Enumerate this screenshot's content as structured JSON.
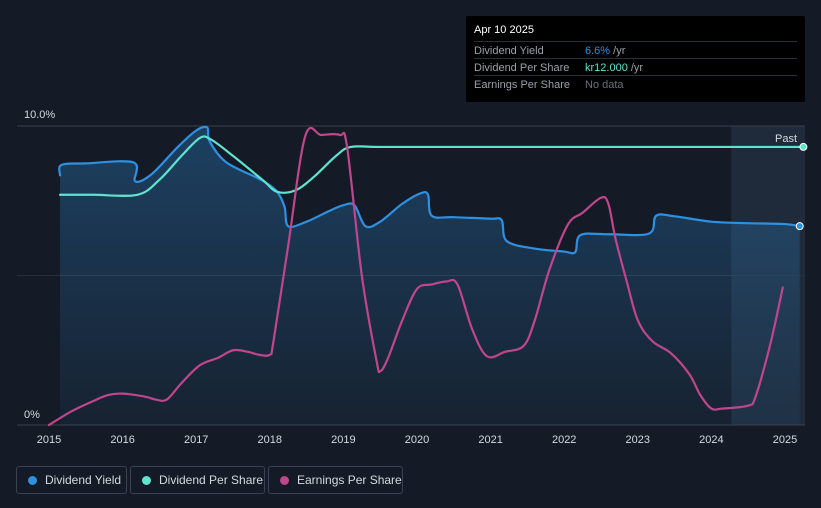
{
  "tooltip": {
    "date": "Apr 10 2025",
    "rows": [
      {
        "label": "Dividend Yield",
        "value": "6.6%",
        "unit": " /yr",
        "color": "#2e90e0"
      },
      {
        "label": "Dividend Per Share",
        "value": "kr12.000",
        "unit": " /yr",
        "color": "#5fe3cf"
      },
      {
        "label": "Earnings Per Share",
        "value": "No data",
        "unit": "",
        "color": "#6b717b"
      }
    ]
  },
  "legend": [
    {
      "label": "Dividend Yield",
      "color": "#2e90e0"
    },
    {
      "label": "Dividend Per Share",
      "color": "#5fe3cf"
    },
    {
      "label": "Earnings Per Share",
      "color": "#c0468b"
    }
  ],
  "chart_data": {
    "type": "line",
    "y_tick_labels": [
      "10.0%",
      "0%"
    ],
    "ylim": [
      0,
      10
    ],
    "xlim": [
      2015,
      2025.25
    ],
    "x_tick_labels": [
      "2015",
      "2016",
      "2017",
      "2018",
      "2019",
      "2020",
      "2021",
      "2022",
      "2023",
      "2024",
      "2025"
    ],
    "past_label": "Past",
    "forecast_start": 2024.27,
    "grid": true,
    "series": [
      {
        "name": "Dividend Yield",
        "color": "#2e90e0",
        "area": true,
        "points": [
          [
            2015.15,
            8.35
          ],
          [
            2015.17,
            8.7
          ],
          [
            2015.5,
            8.75
          ],
          [
            2016.15,
            8.78
          ],
          [
            2016.17,
            8.15
          ],
          [
            2016.4,
            8.4
          ],
          [
            2016.75,
            9.3
          ],
          [
            2017.0,
            9.85
          ],
          [
            2017.15,
            9.95
          ],
          [
            2017.18,
            9.5
          ],
          [
            2017.4,
            8.8
          ],
          [
            2017.8,
            8.3
          ],
          [
            2017.95,
            8.1
          ],
          [
            2018.1,
            7.8
          ],
          [
            2018.2,
            7.3
          ],
          [
            2018.25,
            6.65
          ],
          [
            2018.5,
            6.8
          ],
          [
            2018.8,
            7.15
          ],
          [
            2019.0,
            7.35
          ],
          [
            2019.15,
            7.35
          ],
          [
            2019.3,
            6.65
          ],
          [
            2019.5,
            6.8
          ],
          [
            2019.8,
            7.4
          ],
          [
            2020.05,
            7.75
          ],
          [
            2020.15,
            7.7
          ],
          [
            2020.2,
            7.0
          ],
          [
            2020.5,
            6.95
          ],
          [
            2021.0,
            6.9
          ],
          [
            2021.15,
            6.85
          ],
          [
            2021.22,
            6.15
          ],
          [
            2021.6,
            5.9
          ],
          [
            2022.0,
            5.8
          ],
          [
            2022.15,
            5.78
          ],
          [
            2022.22,
            6.35
          ],
          [
            2022.6,
            6.38
          ],
          [
            2023.15,
            6.4
          ],
          [
            2023.25,
            7.0
          ],
          [
            2023.5,
            6.98
          ],
          [
            2024.0,
            6.8
          ],
          [
            2024.5,
            6.75
          ],
          [
            2025.0,
            6.72
          ],
          [
            2025.2,
            6.65
          ]
        ]
      },
      {
        "name": "Dividend Per Share",
        "color": "#5fe3cf",
        "area": false,
        "points": [
          [
            2015.15,
            7.7
          ],
          [
            2015.6,
            7.7
          ],
          [
            2016.2,
            7.7
          ],
          [
            2016.5,
            8.2
          ],
          [
            2016.8,
            9.0
          ],
          [
            2017.05,
            9.6
          ],
          [
            2017.2,
            9.55
          ],
          [
            2017.5,
            9.0
          ],
          [
            2017.9,
            8.2
          ],
          [
            2018.1,
            7.8
          ],
          [
            2018.35,
            7.85
          ],
          [
            2018.6,
            8.3
          ],
          [
            2018.9,
            9.0
          ],
          [
            2019.1,
            9.3
          ],
          [
            2019.5,
            9.3
          ],
          [
            2020.5,
            9.3
          ],
          [
            2021.5,
            9.3
          ],
          [
            2022.5,
            9.3
          ],
          [
            2023.5,
            9.3
          ],
          [
            2024.5,
            9.3
          ],
          [
            2025.25,
            9.3
          ]
        ]
      },
      {
        "name": "Earnings Per Share",
        "color": "#c0468b",
        "area": false,
        "points": [
          [
            2015.0,
            0.0
          ],
          [
            2015.3,
            0.45
          ],
          [
            2015.6,
            0.8
          ],
          [
            2015.8,
            1.0
          ],
          [
            2016.0,
            1.05
          ],
          [
            2016.3,
            0.95
          ],
          [
            2016.45,
            0.85
          ],
          [
            2016.6,
            0.85
          ],
          [
            2016.8,
            1.4
          ],
          [
            2017.05,
            2.0
          ],
          [
            2017.3,
            2.25
          ],
          [
            2017.5,
            2.5
          ],
          [
            2017.7,
            2.45
          ],
          [
            2017.85,
            2.35
          ],
          [
            2018.0,
            2.35
          ],
          [
            2018.05,
            2.8
          ],
          [
            2018.25,
            6.0
          ],
          [
            2018.48,
            9.65
          ],
          [
            2018.7,
            9.7
          ],
          [
            2018.95,
            9.7
          ],
          [
            2019.05,
            9.3
          ],
          [
            2019.25,
            5.0
          ],
          [
            2019.45,
            2.15
          ],
          [
            2019.5,
            1.8
          ],
          [
            2019.6,
            2.2
          ],
          [
            2019.8,
            3.5
          ],
          [
            2020.0,
            4.55
          ],
          [
            2020.2,
            4.7
          ],
          [
            2020.4,
            4.8
          ],
          [
            2020.55,
            4.7
          ],
          [
            2020.75,
            3.2
          ],
          [
            2020.95,
            2.3
          ],
          [
            2021.2,
            2.45
          ],
          [
            2021.45,
            2.65
          ],
          [
            2021.6,
            3.5
          ],
          [
            2021.8,
            5.2
          ],
          [
            2022.05,
            6.7
          ],
          [
            2022.25,
            7.1
          ],
          [
            2022.5,
            7.6
          ],
          [
            2022.6,
            7.4
          ],
          [
            2022.7,
            6.2
          ],
          [
            2022.85,
            4.8
          ],
          [
            2023.0,
            3.5
          ],
          [
            2023.2,
            2.8
          ],
          [
            2023.45,
            2.4
          ],
          [
            2023.7,
            1.7
          ],
          [
            2023.85,
            1.0
          ],
          [
            2024.0,
            0.55
          ],
          [
            2024.15,
            0.55
          ],
          [
            2024.5,
            0.65
          ],
          [
            2024.6,
            0.95
          ],
          [
            2024.8,
            2.7
          ],
          [
            2024.97,
            4.6
          ]
        ]
      }
    ]
  }
}
